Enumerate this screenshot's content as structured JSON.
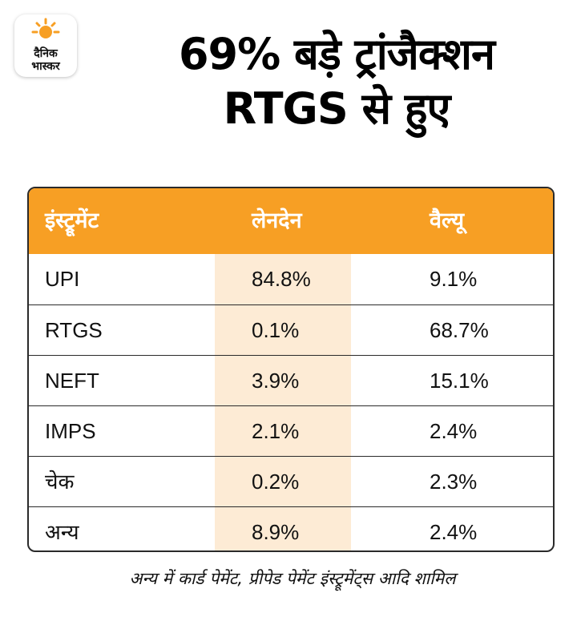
{
  "logo": {
    "line1": "दैनिक",
    "line2": "भास्कर",
    "sun_color": "#f79f24"
  },
  "title": {
    "line1": "69% बड़े ट्रांजैक्शन",
    "line2": "RTGS से हुए"
  },
  "colors": {
    "header_bg": "#f79f24",
    "highlight_col": "#fdebd5"
  },
  "chart_data": {
    "type": "table",
    "columns": [
      "इंस्ट्रूमेंट",
      "लेनदेन",
      "वैल्यू"
    ],
    "rows": [
      [
        "UPI",
        "84.8%",
        "9.1%"
      ],
      [
        "RTGS",
        "0.1%",
        "68.7%"
      ],
      [
        "NEFT",
        "3.9%",
        "15.1%"
      ],
      [
        "IMPS",
        "2.1%",
        "2.4%"
      ],
      [
        "चेक",
        "0.2%",
        "2.3%"
      ],
      [
        "अन्य",
        "8.9%",
        "2.4%"
      ]
    ]
  },
  "footnote": "अन्य में कार्ड पेमेंट, प्रीपेड पेमेंट इंस्ट्रूमेंट्स आदि शामिल"
}
